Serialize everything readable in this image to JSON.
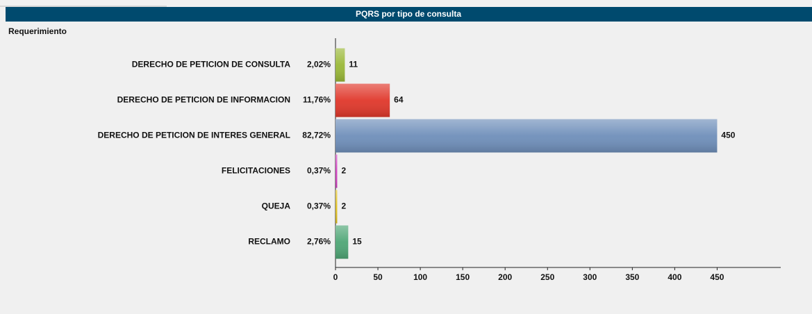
{
  "chart_data": {
    "type": "bar",
    "orientation": "horizontal",
    "title": "PQRS por tipo de consulta",
    "y_axis_label": "Requerimiento",
    "categories": [
      "DERECHO DE PETICION DE CONSULTA",
      "DERECHO DE PETICION DE INFORMACION",
      "DERECHO DE PETICION DE INTERES GENERAL",
      "FELICITACIONES",
      "QUEJA",
      "RECLAMO"
    ],
    "percent_labels": [
      "2,02%",
      "11,76%",
      "82,72%",
      "0,37%",
      "0,37%",
      "2,76%"
    ],
    "values": [
      11,
      64,
      450,
      2,
      2,
      15
    ],
    "colors": [
      "#9ab838",
      "#e0382b",
      "#6f8fba",
      "#d040c0",
      "#e0c020",
      "#4fa676"
    ],
    "xlim": [
      0,
      525
    ],
    "xticks": [
      0,
      50,
      100,
      150,
      200,
      250,
      300,
      350,
      400,
      450
    ],
    "grid": false
  }
}
